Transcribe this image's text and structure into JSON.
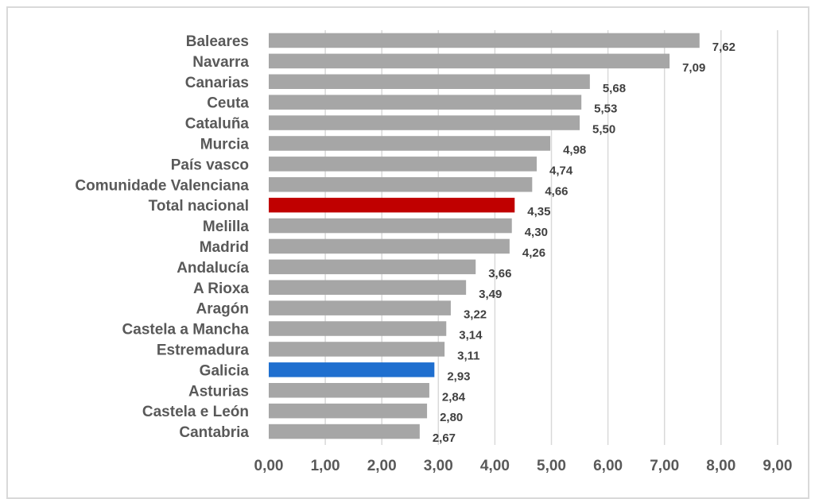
{
  "chart_data": {
    "type": "bar",
    "orientation": "horizontal",
    "title": "",
    "xlabel": "",
    "ylabel": "",
    "xlim": [
      0,
      9
    ],
    "grid": true,
    "legend": "none",
    "categories": [
      "Baleares",
      "Navarra",
      "Canarias",
      "Ceuta",
      "Cataluña",
      "Murcia",
      "País vasco",
      "Comunidade Valenciana",
      "Total nacional",
      "Melilla",
      "Madrid",
      "Andalucía",
      "A Rioxa",
      "Aragón",
      "Castela a Mancha",
      "Estremadura",
      "Galicia",
      "Asturias",
      "Castela e León",
      "Cantabria"
    ],
    "values": [
      7.62,
      7.09,
      5.68,
      5.53,
      5.5,
      4.98,
      4.74,
      4.66,
      4.35,
      4.3,
      4.26,
      3.66,
      3.49,
      3.22,
      3.14,
      3.11,
      2.93,
      2.84,
      2.8,
      2.67
    ],
    "value_labels": [
      "7,62",
      "7,09",
      "5,68",
      "5,53",
      "5,50",
      "4,98",
      "4,74",
      "4,66",
      "4,35",
      "4,30",
      "4,26",
      "3,66",
      "3,49",
      "3,22",
      "3,14",
      "3,11",
      "2,93",
      "2,84",
      "2,80",
      "2,67"
    ],
    "x_tick_labels": [
      "0,00",
      "1,00",
      "2,00",
      "3,00",
      "4,00",
      "5,00",
      "6,00",
      "7,00",
      "8,00",
      "9,00"
    ],
    "colors": {
      "default": "#a6a6a6",
      "highlight_total": "#c00000",
      "highlight_galicia": "#1f6fcf",
      "grid": "#d9d9d9"
    },
    "highlights": {
      "Total nacional": "highlight_total",
      "Galicia": "highlight_galicia"
    }
  }
}
